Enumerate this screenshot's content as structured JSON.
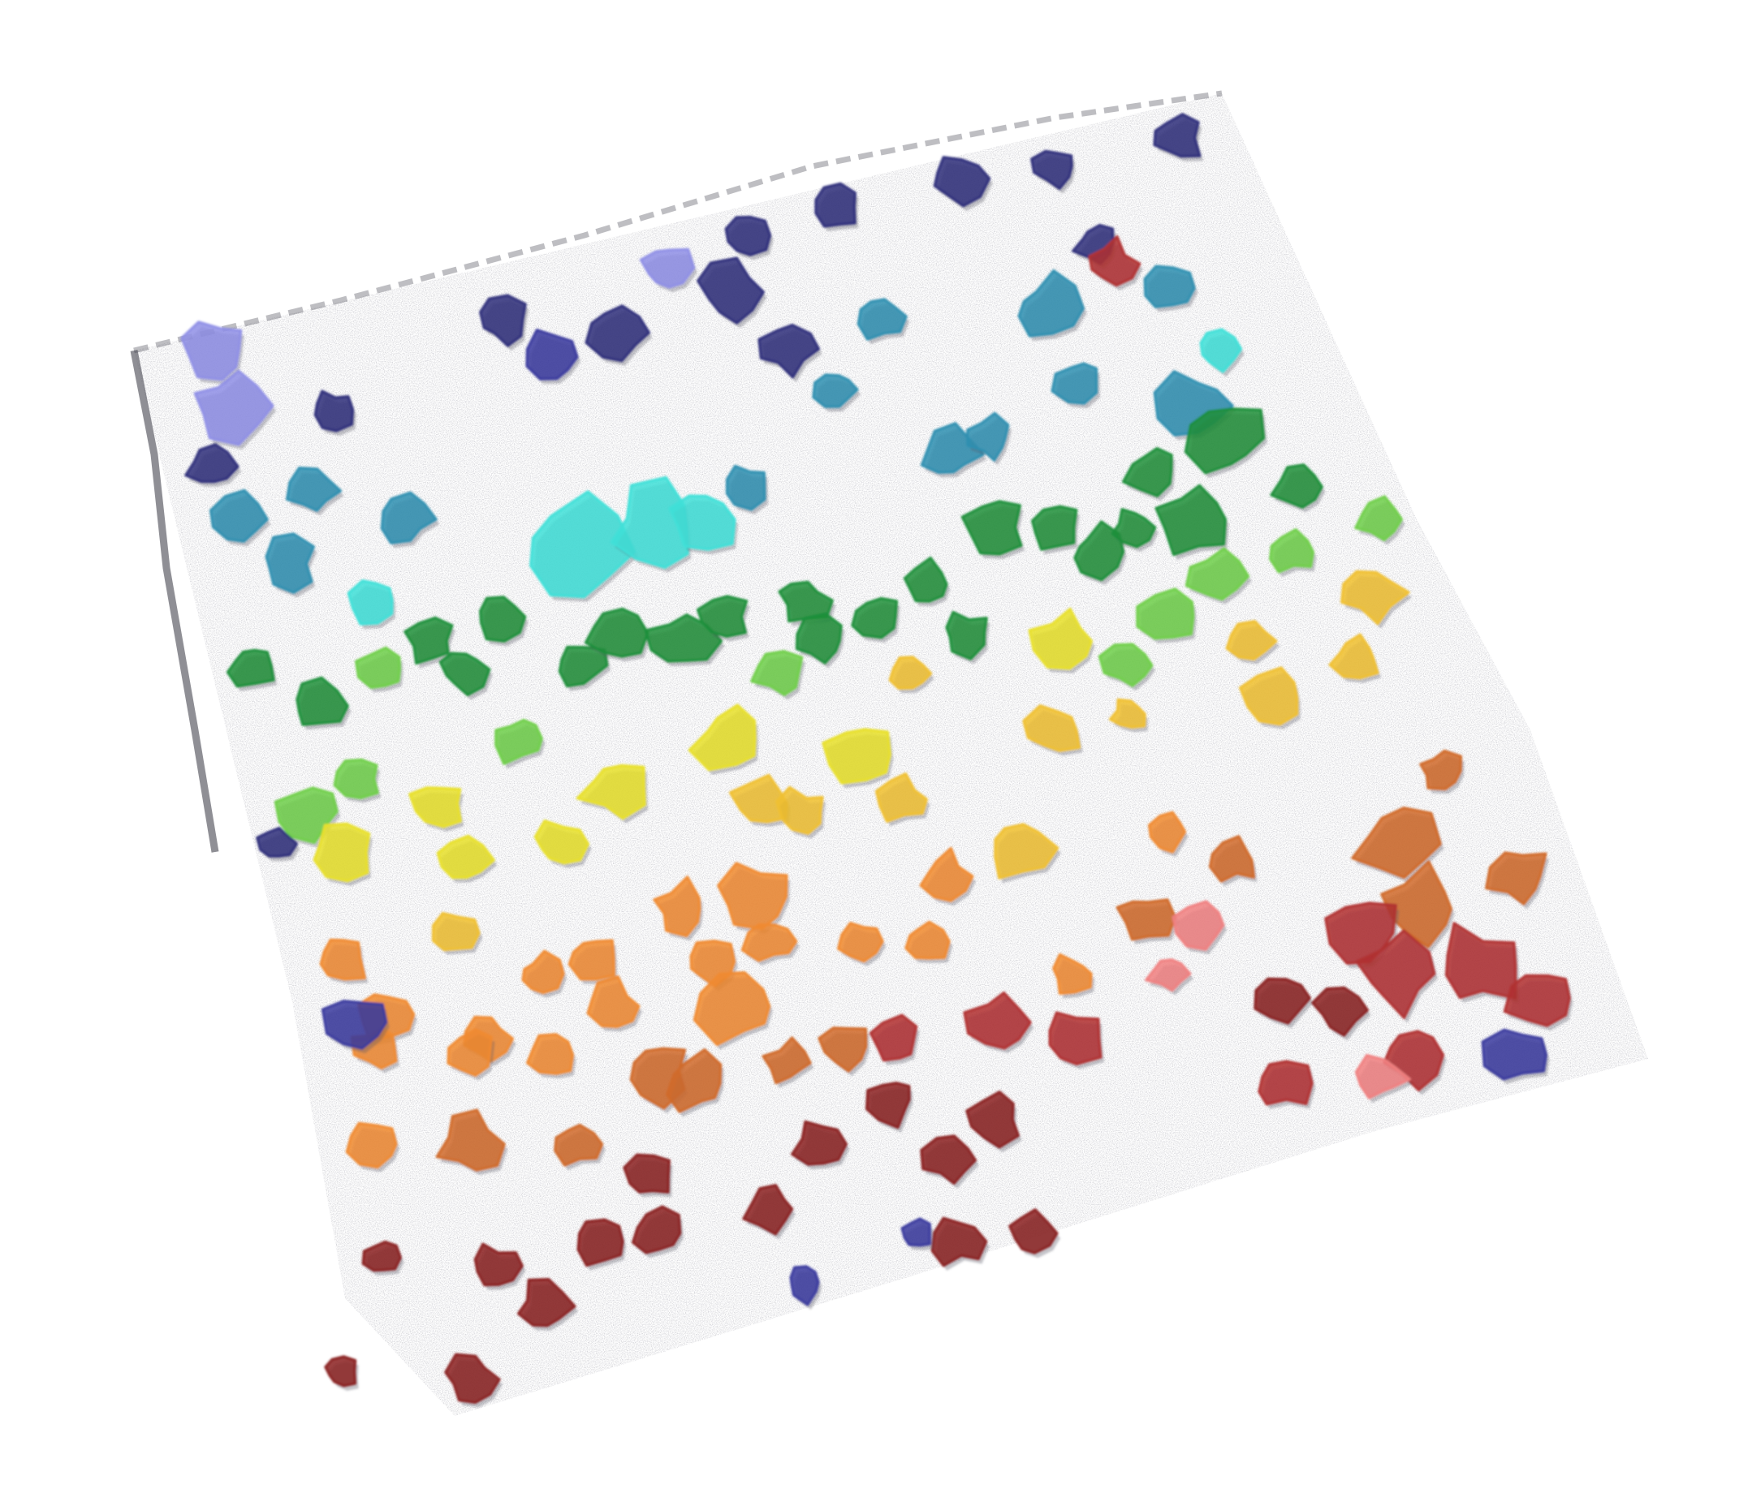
{
  "scene": {
    "subject": "volume-rendered-cell-segmentation",
    "background_color": "#ffffff",
    "palette": {
      "blue": "#3a3a9e",
      "lavender": "#8f8fe6",
      "navy": "#2f2f7a",
      "teal": "#2f8fb0",
      "cyan": "#3fe0d8",
      "green": "#1f8f3a",
      "light_green": "#6fcf4a",
      "yellow": "#e8e02a",
      "gold": "#f0c030",
      "orange": "#f08a30",
      "dark_orange": "#d06a2a",
      "red": "#b03030",
      "dark_red": "#8a2020",
      "pink": "#f08080",
      "speckle": "#5a5a66"
    }
  }
}
